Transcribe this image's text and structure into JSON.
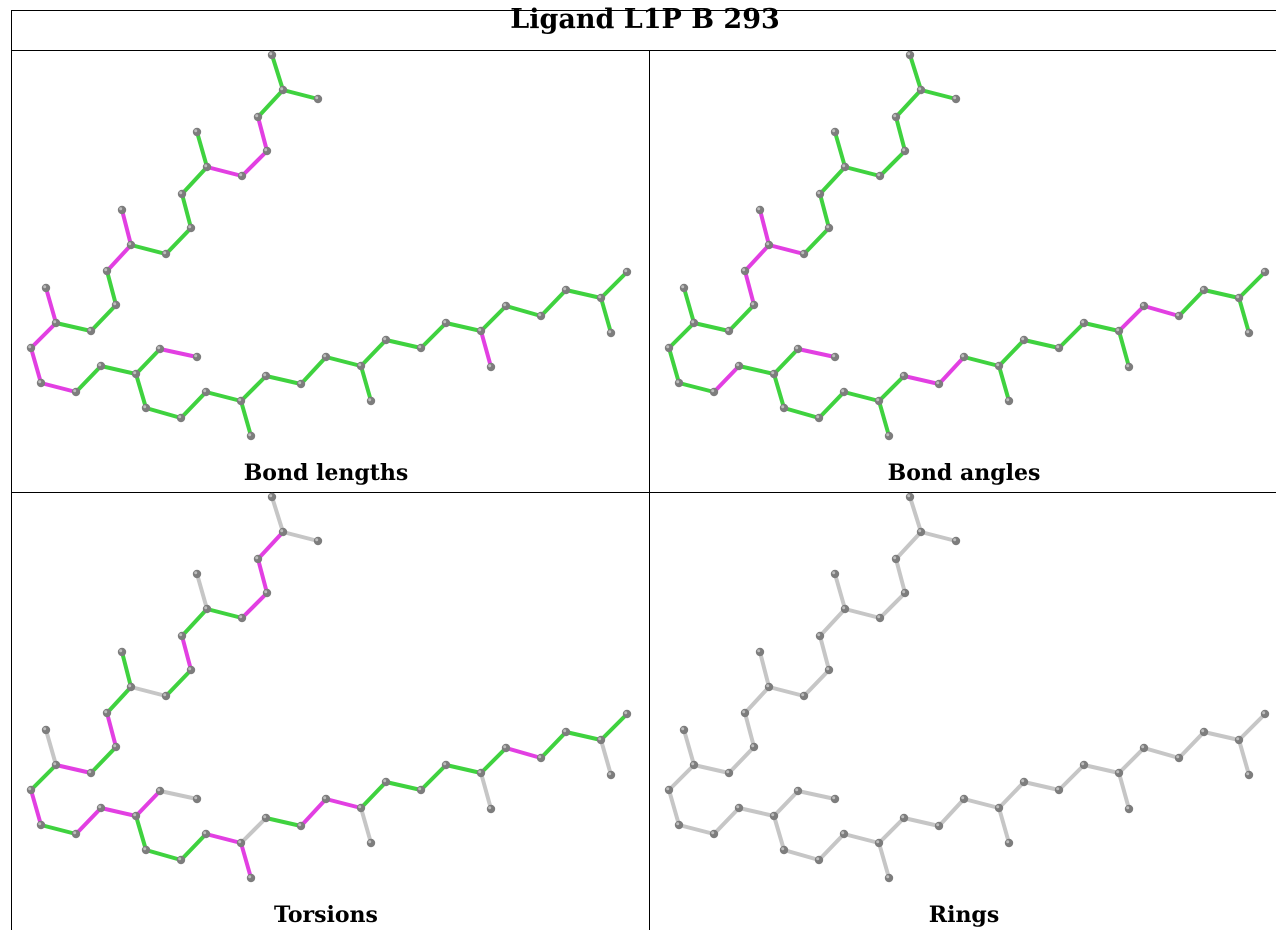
{
  "title": "Ligand L1P B 293",
  "colors": {
    "green": "#3fd23f",
    "magenta": "#e23fe2",
    "grey_bond": "#c6c6c6",
    "atom": "#7d7d7d",
    "atom_highlight": "#bdbdbd"
  },
  "panels": [
    {
      "name": "bond-lengths",
      "caption": "Bond lengths"
    },
    {
      "name": "bond-angles",
      "caption": "Bond angles"
    },
    {
      "name": "torsions",
      "caption": "Torsions"
    },
    {
      "name": "rings",
      "caption": "Rings"
    }
  ]
}
